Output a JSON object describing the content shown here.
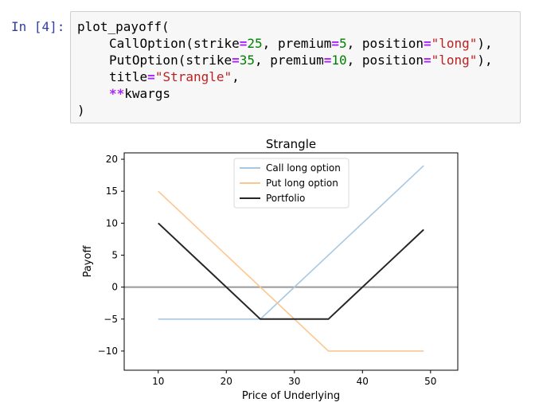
{
  "cell": {
    "prompt": "In [4]:",
    "code": {
      "func_call": "plot_payoff(",
      "line1": {
        "cls": "CallOption(",
        "kw1": "strike",
        "v1": "25",
        "kw2": "premium",
        "v2": "5",
        "kw3": "position",
        "v3": "\"long\"",
        "end": "),"
      },
      "line2": {
        "cls": "PutOption(",
        "kw1": "strike",
        "v1": "35",
        "kw2": "premium",
        "v2": "10",
        "kw3": "position",
        "v3": "\"long\"",
        "end": "),"
      },
      "line3": {
        "kw": "title",
        "v": "\"Strangle\"",
        "end": ","
      },
      "line4": {
        "op": "**",
        "name": "kwargs"
      },
      "close": ")"
    }
  },
  "chart_data": {
    "type": "line",
    "title": "Strangle",
    "xlabel": "Price of Underlying",
    "ylabel": "Payoff",
    "xlim": [
      5,
      54
    ],
    "ylim": [
      -13,
      21
    ],
    "xticks": [
      10,
      20,
      30,
      40,
      50
    ],
    "yticks": [
      -10,
      -5,
      0,
      5,
      10,
      15,
      20
    ],
    "grid": false,
    "legend_position": "top-center",
    "zero_line": {
      "y": 0,
      "color": "#999999"
    },
    "series": [
      {
        "name": "Call long option",
        "color": "#a6c8e3",
        "x": [
          10,
          25,
          49
        ],
        "y": [
          -5,
          -5,
          19
        ]
      },
      {
        "name": "Put long option",
        "color": "#fdc690",
        "x": [
          10,
          35,
          49
        ],
        "y": [
          15,
          -10,
          -10
        ]
      },
      {
        "name": "Portfolio",
        "color": "#262626",
        "x": [
          10,
          25,
          35,
          49
        ],
        "y": [
          10,
          -5,
          -5,
          9
        ]
      }
    ]
  }
}
